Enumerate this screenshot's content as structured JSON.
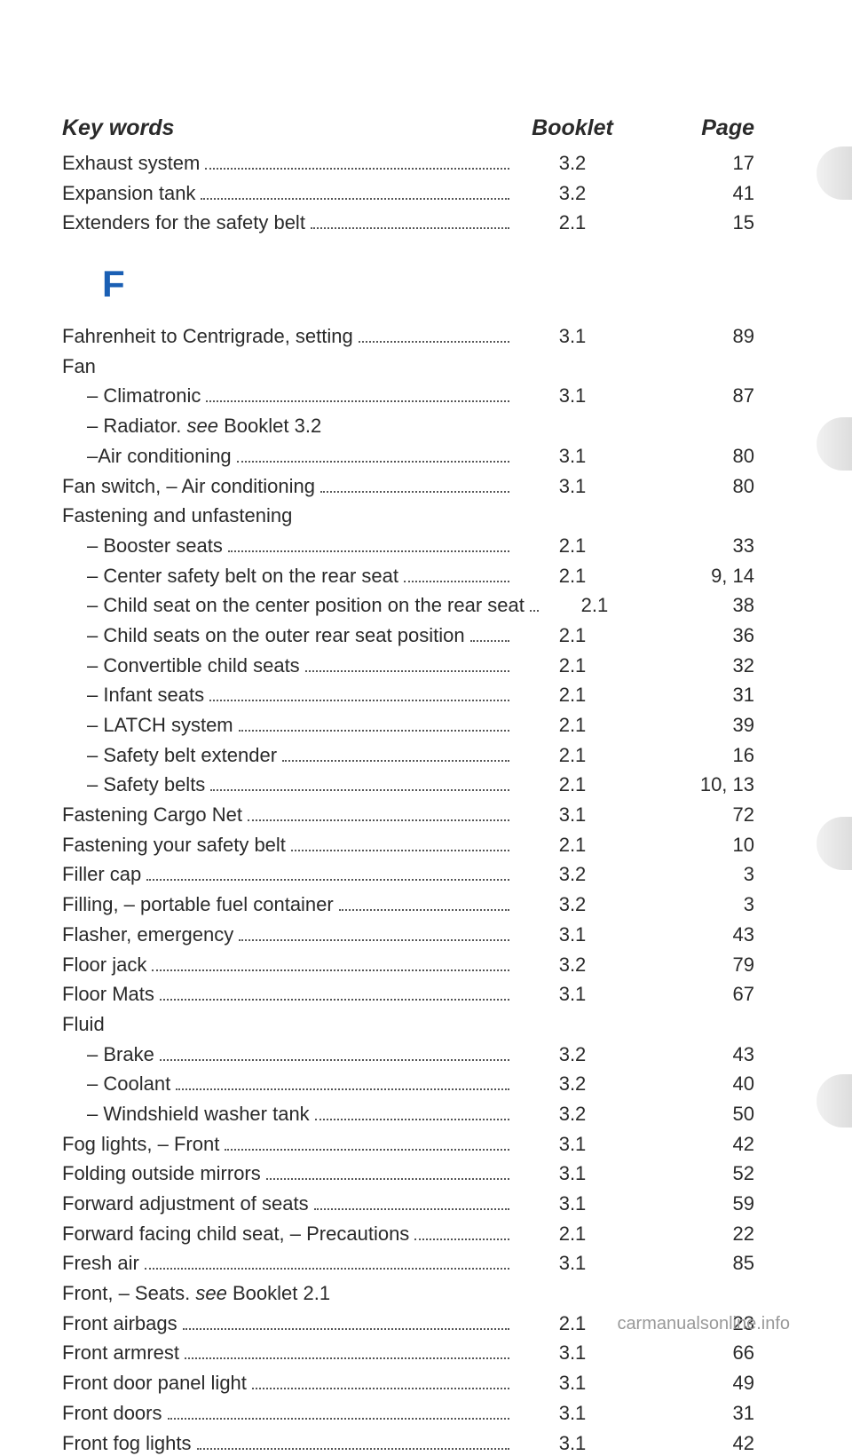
{
  "header": {
    "keywords": "Key words",
    "booklet": "Booklet",
    "page": "Page"
  },
  "sectionE": [
    {
      "text": "Exhaust system",
      "booklet": "3.2",
      "page": "17"
    },
    {
      "text": "Expansion tank",
      "booklet": "3.2",
      "page": "41"
    },
    {
      "text": "Extenders for the safety belt",
      "booklet": "2.1",
      "page": "15"
    }
  ],
  "sectionLetter": "F",
  "sectionF": [
    {
      "text": "Fahrenheit to Centrigrade, setting",
      "booklet": "3.1",
      "page": "89"
    },
    {
      "text": "Fan",
      "noref": true
    },
    {
      "text": "– Climatronic",
      "indent": true,
      "booklet": "3.1",
      "page": "87"
    },
    {
      "text": "– Radiator. ",
      "indent": true,
      "noref": true,
      "see": "see",
      "seeRef": " Booklet 3.2"
    },
    {
      "text": "–Air conditioning",
      "indent": true,
      "booklet": "3.1",
      "page": "80"
    },
    {
      "text": "Fan switch, – Air conditioning",
      "booklet": "3.1",
      "page": "80"
    },
    {
      "text": "Fastening and unfastening",
      "noref": true
    },
    {
      "text": "– Booster seats",
      "indent": true,
      "booklet": "2.1",
      "page": "33"
    },
    {
      "text": "– Center safety belt on the rear seat",
      "indent": true,
      "booklet": "2.1",
      "page": "9, 14"
    },
    {
      "text": "– Child seat on the center position on the rear seat",
      "indent": true,
      "booklet": "2.1",
      "page": "38",
      "shortdots": true
    },
    {
      "text": "– Child seats on the outer rear seat position",
      "indent": true,
      "booklet": "2.1",
      "page": "36"
    },
    {
      "text": "– Convertible child seats",
      "indent": true,
      "booklet": "2.1",
      "page": "32"
    },
    {
      "text": "– Infant seats",
      "indent": true,
      "booklet": "2.1",
      "page": "31"
    },
    {
      "text": "– LATCH system",
      "indent": true,
      "booklet": "2.1",
      "page": "39"
    },
    {
      "text": "– Safety belt extender",
      "indent": true,
      "booklet": "2.1",
      "page": "16"
    },
    {
      "text": "– Safety belts",
      "indent": true,
      "booklet": "2.1",
      "page": "10, 13"
    },
    {
      "text": "Fastening Cargo Net",
      "booklet": "3.1",
      "page": "72"
    },
    {
      "text": "Fastening your safety belt",
      "booklet": "2.1",
      "page": "10"
    },
    {
      "text": "Filler cap",
      "booklet": "3.2",
      "page": "3"
    },
    {
      "text": "Filling, – portable fuel container",
      "booklet": "3.2",
      "page": "3"
    },
    {
      "text": "Flasher, emergency",
      "booklet": "3.1",
      "page": "43"
    },
    {
      "text": "Floor jack",
      "booklet": "3.2",
      "page": "79"
    },
    {
      "text": "Floor Mats",
      "booklet": "3.1",
      "page": "67"
    },
    {
      "text": "Fluid",
      "noref": true
    },
    {
      "text": "– Brake",
      "indent": true,
      "booklet": "3.2",
      "page": "43"
    },
    {
      "text": "– Coolant",
      "indent": true,
      "booklet": "3.2",
      "page": "40"
    },
    {
      "text": "– Windshield washer tank",
      "indent": true,
      "booklet": "3.2",
      "page": "50"
    },
    {
      "text": "Fog lights, – Front",
      "booklet": "3.1",
      "page": "42"
    },
    {
      "text": "Folding outside mirrors",
      "booklet": "3.1",
      "page": "52"
    },
    {
      "text": "Forward adjustment of seats",
      "booklet": "3.1",
      "page": "59"
    },
    {
      "text": "Forward facing child seat, – Precautions",
      "booklet": "2.1",
      "page": "22"
    },
    {
      "text": "Fresh air",
      "booklet": "3.1",
      "page": "85"
    },
    {
      "text": "Front, – Seats. ",
      "noref": true,
      "see": "see",
      "seeRef": " Booklet 2.1"
    },
    {
      "text": "Front airbags",
      "booklet": "2.1",
      "page": "23"
    },
    {
      "text": "Front armrest",
      "booklet": "3.1",
      "page": "66"
    },
    {
      "text": "Front door panel light",
      "booklet": "3.1",
      "page": "49"
    },
    {
      "text": "Front doors",
      "booklet": "3.1",
      "page": "31"
    },
    {
      "text": "Front fog lights",
      "booklet": "3.1",
      "page": "42"
    }
  ],
  "watermark": "carmanualsonline.info"
}
